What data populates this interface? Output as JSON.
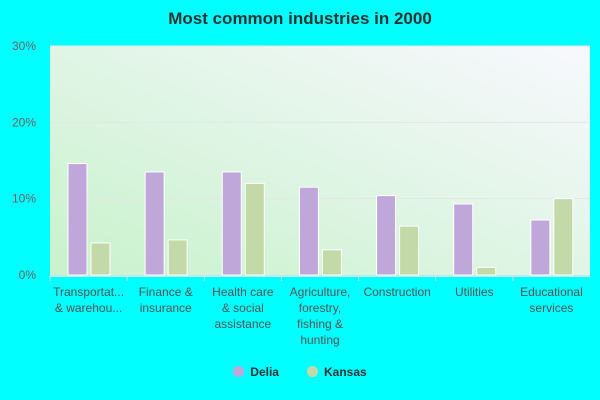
{
  "chart_data": {
    "type": "bar",
    "title": "Most common industries in 2000",
    "categories": [
      [
        "Transportat...",
        "& warehou..."
      ],
      [
        "Finance &",
        "insurance"
      ],
      [
        "Health care",
        "& social",
        "assistance"
      ],
      [
        "Agriculture,",
        "forestry,",
        "fishing &",
        "hunting"
      ],
      [
        "Construction"
      ],
      [
        "Utilities"
      ],
      [
        "Educational",
        "services"
      ]
    ],
    "series": [
      {
        "name": "Delia",
        "color": "#bfa8d9",
        "values": [
          14.6,
          13.5,
          13.5,
          11.5,
          10.4,
          9.3,
          7.2
        ]
      },
      {
        "name": "Kansas",
        "color": "#c4d9a8",
        "values": [
          4.2,
          4.6,
          12.0,
          3.3,
          6.4,
          1.0,
          10.0
        ]
      }
    ],
    "ylim": [
      0,
      30
    ],
    "yticks": [
      "0%",
      "10%",
      "20%",
      "30%"
    ],
    "grid": true,
    "legend": "bottom",
    "xlabel": "",
    "ylabel": ""
  }
}
